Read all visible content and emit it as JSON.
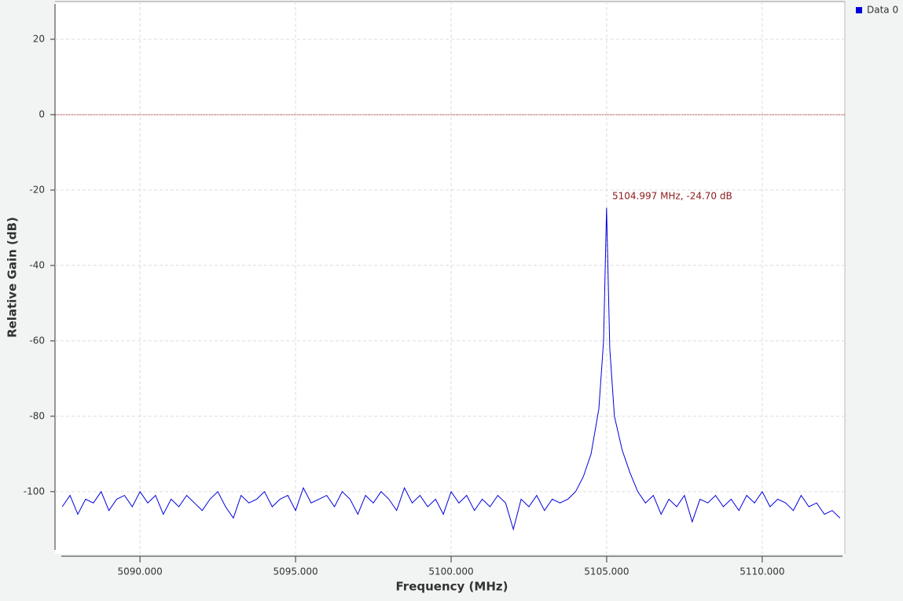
{
  "chart_data": {
    "type": "line",
    "xlabel": "Frequency (MHz)",
    "ylabel": "Relative Gain (dB)",
    "annotation": "5104.997 MHz, -24.70 dB",
    "x": [
      5087.5,
      5087.75,
      5088,
      5088.25,
      5088.5,
      5088.75,
      5089,
      5089.25,
      5089.5,
      5089.75,
      5090,
      5090.25,
      5090.5,
      5090.75,
      5091,
      5091.25,
      5091.5,
      5091.75,
      5092,
      5092.25,
      5092.5,
      5092.75,
      5093,
      5093.25,
      5093.5,
      5093.75,
      5094,
      5094.25,
      5094.5,
      5094.75,
      5095,
      5095.25,
      5095.5,
      5095.75,
      5096,
      5096.25,
      5096.5,
      5096.75,
      5097,
      5097.25,
      5097.5,
      5097.75,
      5098,
      5098.25,
      5098.5,
      5098.75,
      5099,
      5099.25,
      5099.5,
      5099.75,
      5100,
      5100.25,
      5100.5,
      5100.75,
      5101,
      5101.25,
      5101.5,
      5101.75,
      5102,
      5102.25,
      5102.5,
      5102.75,
      5103,
      5103.25,
      5103.5,
      5103.75,
      5104,
      5104.25,
      5104.5,
      5104.75,
      5104.9,
      5104.997,
      5105.1,
      5105.25,
      5105.5,
      5105.75,
      5106,
      5106.25,
      5106.5,
      5106.75,
      5107,
      5107.25,
      5107.5,
      5107.75,
      5108,
      5108.25,
      5108.5,
      5108.75,
      5109,
      5109.25,
      5109.5,
      5109.75,
      5110,
      5110.25,
      5110.5,
      5110.75,
      5111,
      5111.25,
      5111.5,
      5111.75,
      5112,
      5112.25,
      5112.5
    ],
    "series": [
      {
        "name": "Data 0",
        "color": "#0000dd",
        "values": [
          -104,
          -101,
          -106,
          -102,
          -103,
          -100,
          -105,
          -102,
          -101,
          -104,
          -100,
          -103,
          -101,
          -106,
          -102,
          -104,
          -101,
          -103,
          -105,
          -102,
          -100,
          -104,
          -107,
          -101,
          -103,
          -102,
          -100,
          -104,
          -102,
          -101,
          -105,
          -99,
          -103,
          -102,
          -101,
          -104,
          -100,
          -102,
          -106,
          -101,
          -103,
          -100,
          -102,
          -105,
          -99,
          -103,
          -101,
          -104,
          -102,
          -106,
          -100,
          -103,
          -101,
          -105,
          -102,
          -104,
          -101,
          -103,
          -110,
          -102,
          -104,
          -101,
          -105,
          -102,
          -103,
          -102,
          -100,
          -96,
          -90,
          -78,
          -60,
          -24.7,
          -62,
          -80,
          -89,
          -95,
          -100,
          -103,
          -101,
          -106,
          -102,
          -104,
          -101,
          -108,
          -102,
          -103,
          -101,
          -104,
          -102,
          -105,
          -101,
          -103,
          -100,
          -104,
          -102,
          -103,
          -105,
          -101,
          -104,
          -103,
          -106,
          -105,
          -107
        ]
      }
    ],
    "hline": 0,
    "xlim": [
      5087.47,
      5112.58
    ],
    "ylim": [
      -116.5,
      30
    ],
    "xticks": [
      {
        "value": 5090,
        "label": "5090.000"
      },
      {
        "value": 5095,
        "label": "5095.000"
      },
      {
        "value": 5100,
        "label": "5100.000"
      },
      {
        "value": 5105,
        "label": "5105.000"
      },
      {
        "value": 5110,
        "label": "5110.000"
      }
    ],
    "yticks": [
      20,
      0,
      -20,
      -40,
      -60,
      -80,
      -100
    ],
    "grid": true
  }
}
